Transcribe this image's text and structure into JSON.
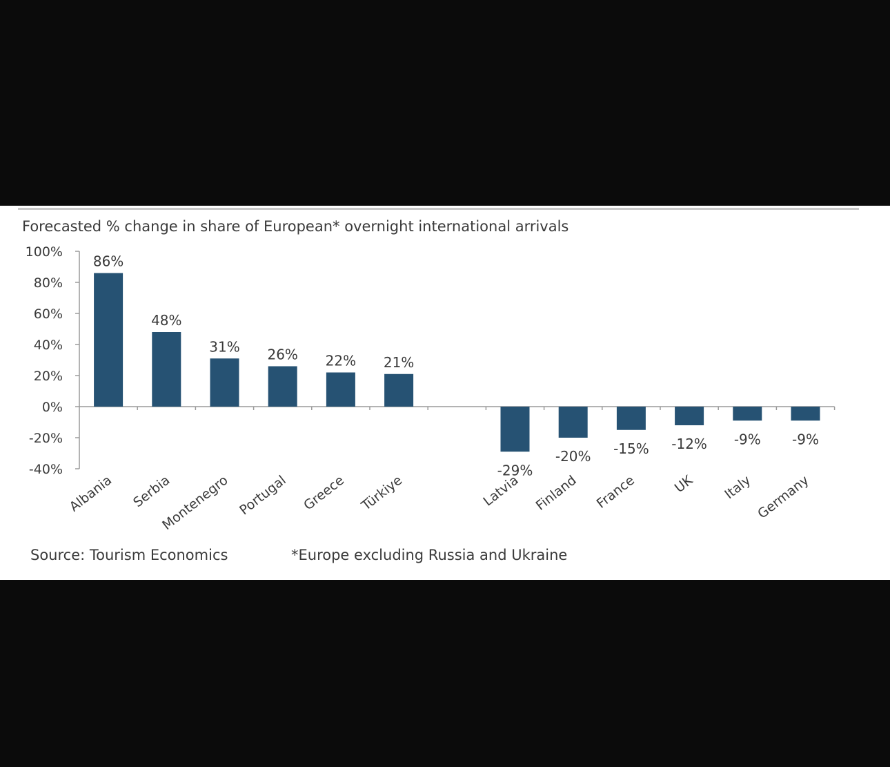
{
  "chart_data": {
    "type": "bar",
    "title": "Forecasted % change in share of European* overnight international arrivals",
    "categories": [
      "Albania",
      "Serbia",
      "Montenegro",
      "Portugal",
      "Greece",
      "Türkiye",
      "",
      "Latvia",
      "Finland",
      "France",
      "UK",
      "Italy",
      "Germany"
    ],
    "values": [
      86,
      48,
      31,
      26,
      22,
      21,
      null,
      -29,
      -20,
      -15,
      -12,
      -9,
      -9
    ],
    "data_labels": [
      "86%",
      "48%",
      "31%",
      "26%",
      "22%",
      "21%",
      "",
      "-29%",
      "-20%",
      "-15%",
      "-12%",
      "-9%",
      "-9%"
    ],
    "ylim": [
      -40,
      100
    ],
    "yticks": [
      100,
      80,
      60,
      40,
      20,
      0,
      -20,
      -40
    ],
    "ytick_labels": [
      "100%",
      "80%",
      "60%",
      "40%",
      "20%",
      "0%",
      "-20%",
      "-40%"
    ],
    "xlabel": "",
    "ylabel": "",
    "bar_color": "#265273",
    "grid": false,
    "legend": "none"
  },
  "footer": {
    "source": "Source: Tourism Economics",
    "footnote": "*Europe excluding Russia and Ukraine"
  }
}
